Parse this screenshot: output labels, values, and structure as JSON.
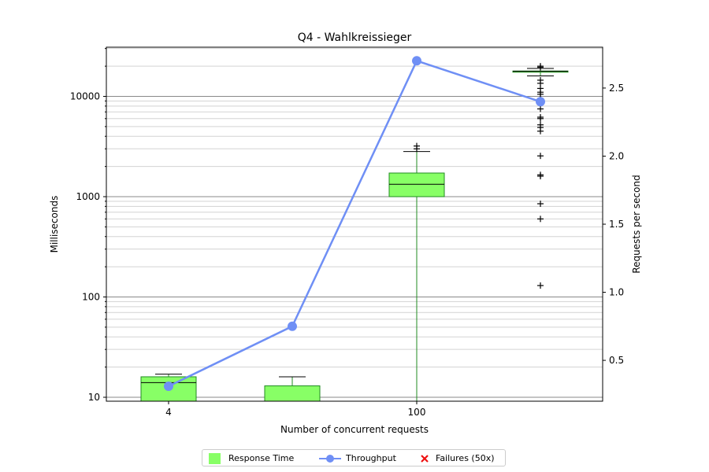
{
  "chart_data": {
    "type": "box+line",
    "title": "Q4 - Wahlkreissieger",
    "xlabel": "Number of concurrent requests",
    "ylabel": "Milliseconds",
    "y2label": "Requests per second",
    "x_ticks": [
      "4",
      "100"
    ],
    "y_ticks": [
      "10",
      "100",
      "1000",
      "10000"
    ],
    "y2_ticks": [
      "0.5",
      "1.0",
      "1.5",
      "2.0",
      "2.5"
    ],
    "y_scale": "log",
    "colors": {
      "box": "#88ff66",
      "box_edge": "#228b22",
      "throughput": "#6f8ff5",
      "failures": "#ee1111"
    },
    "boxes": [
      {
        "whisker_low": 9,
        "q1": 9,
        "median": 14,
        "q3": 16,
        "whisker_high": 17,
        "outliers": []
      },
      {
        "whisker_low": 9,
        "q1": 9,
        "median": 9,
        "q3": 13,
        "whisker_high": 16,
        "outliers": []
      },
      {
        "whisker_low": 9,
        "q1": 1000,
        "median": 1330,
        "q3": 1720,
        "whisker_high": 2820,
        "outliers": [
          3000,
          3200
        ]
      },
      {
        "whisker_low": 16000,
        "q1": 17500,
        "median": 17800,
        "q3": 17900,
        "whisker_high": 19000,
        "outliers": [
          130,
          600,
          850,
          1600,
          1650,
          2550,
          4500,
          4900,
          5200,
          6000,
          6200,
          7500,
          8500,
          9500,
          10500,
          11000,
          12000,
          13500,
          14500,
          19500,
          20000
        ]
      }
    ],
    "throughput": [
      0.31,
      0.75,
      2.7,
      2.4
    ],
    "y_range": [
      9.1,
      30000
    ],
    "y2_range": [
      0.2,
      2.8
    ],
    "grid": "y-major-and-minor",
    "legend_position": "bottom-center"
  },
  "legend": {
    "response_time": "Response Time",
    "throughput": "Throughput",
    "failures": "Failures (50x)"
  }
}
